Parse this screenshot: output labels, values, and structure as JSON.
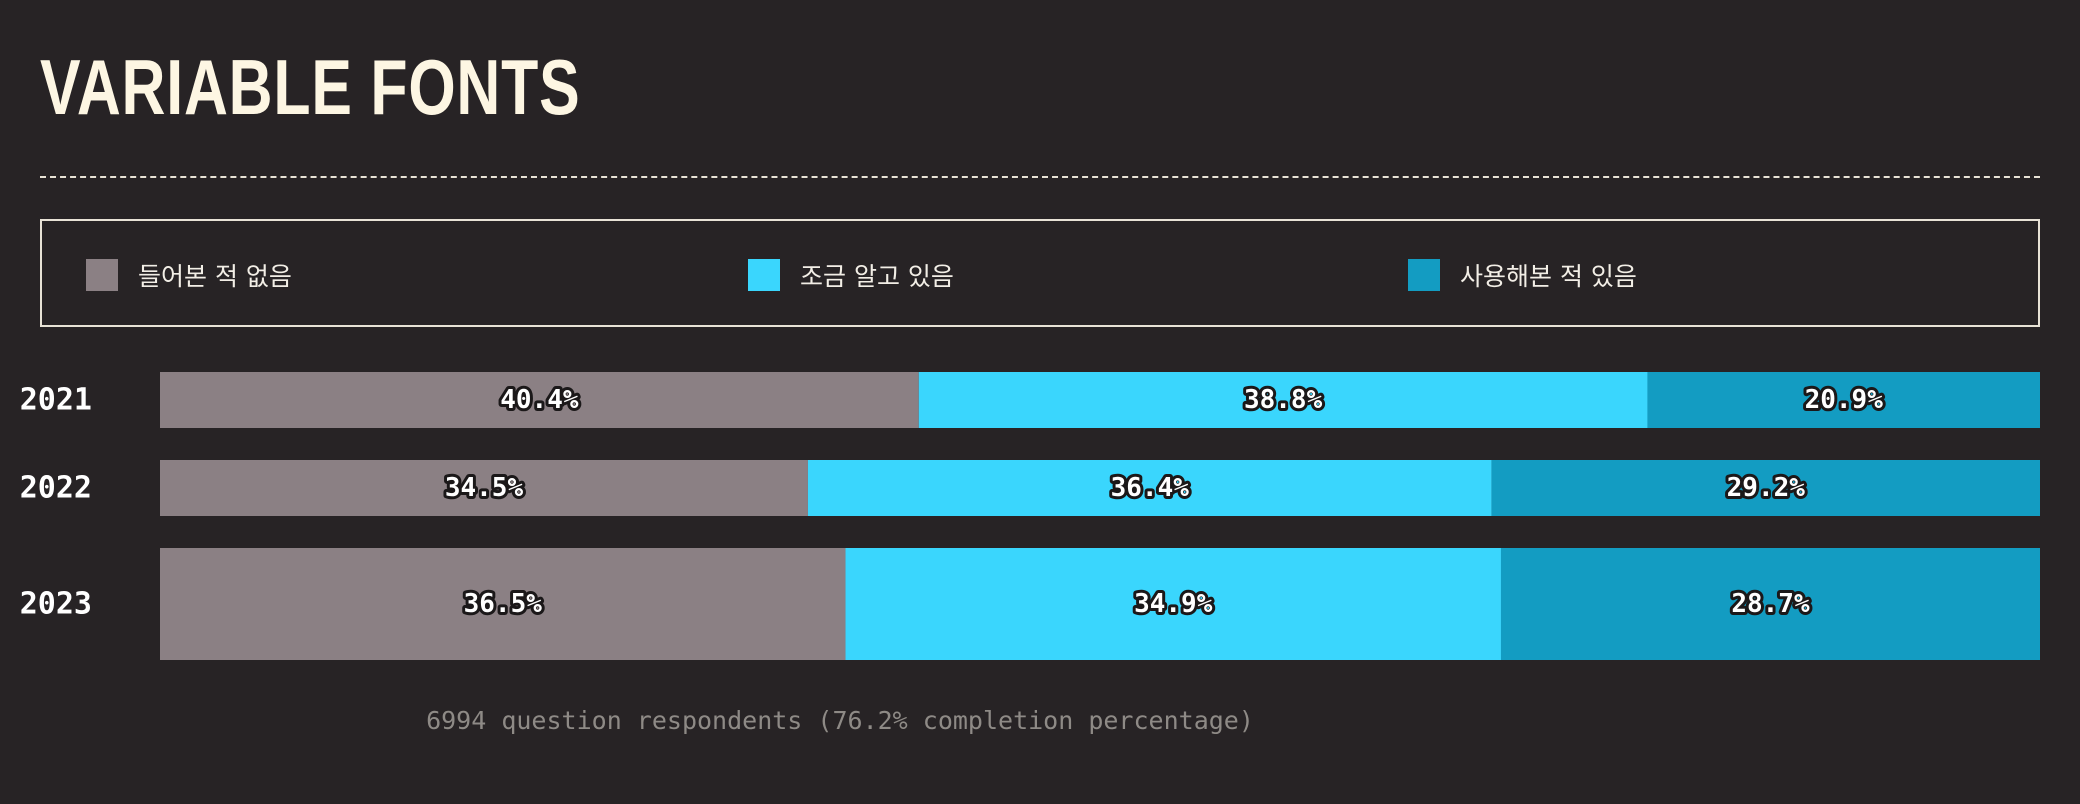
{
  "title": "VARIABLE FONTS",
  "footnote": "6994 question respondents (76.2% completion percentage)",
  "chart_data": {
    "type": "bar",
    "orientation": "horizontal",
    "stacked": true,
    "normalized": true,
    "categories": [
      "2021",
      "2022",
      "2023"
    ],
    "series": [
      {
        "name": "들어본 적 없음",
        "color": "#8b8084",
        "values": [
          40.4,
          34.5,
          36.5
        ]
      },
      {
        "name": "조금 알고 있음",
        "color": "#3ad6fd",
        "values": [
          38.8,
          36.4,
          34.9
        ]
      },
      {
        "name": "사용해본 적 있음",
        "color": "#139cc2",
        "values": [
          20.9,
          29.2,
          28.7
        ]
      }
    ],
    "value_suffix": "%",
    "legend_position": "top",
    "grid": false
  }
}
